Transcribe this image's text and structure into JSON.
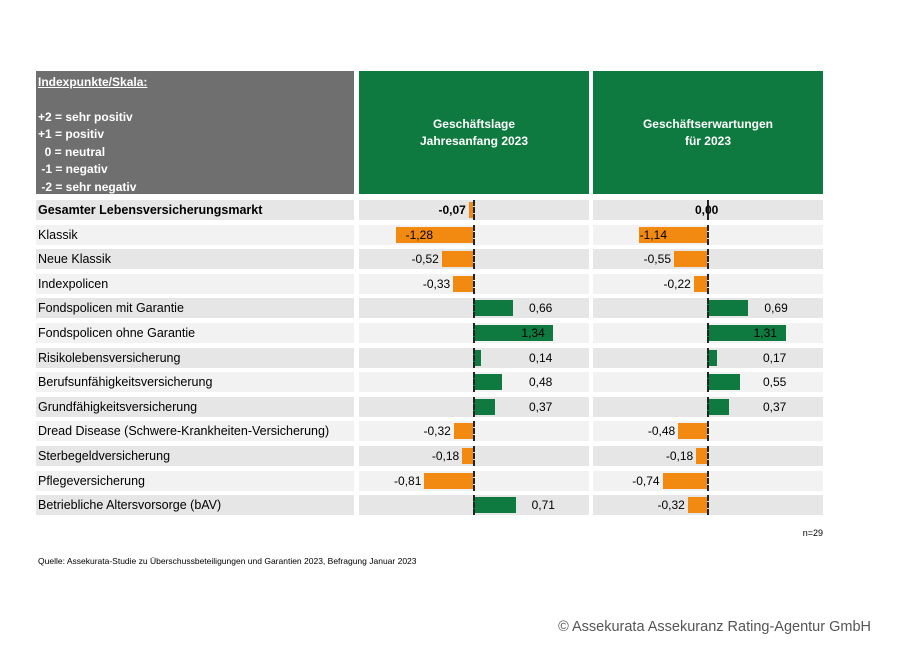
{
  "legend": {
    "title": "Indexpunkte/Skala:",
    "lines": [
      "+2 = sehr positiv",
      "+1 = positiv",
      "  0 = neutral",
      " -1 = negativ",
      " -2 = sehr negativ"
    ]
  },
  "chart_data": {
    "type": "bar",
    "orientation": "horizontal",
    "categories": [
      "Gesamter Lebensversicherungsmarkt",
      "Klassik",
      "Neue Klassik",
      "Indexpolicen",
      "Fondspolicen mit Garantie",
      "Fondspolicen ohne Garantie",
      "Risikolebensversicherung",
      "Berufsunfähigkeitsversicherung",
      "Grundfähigkeitsversicherung",
      "Dread Disease (Schwere-Krankheiten-Versicherung)",
      "Sterbegeldversicherung",
      "Pflegeversicherung",
      "Betriebliche Altersvorsorge (bAV)"
    ],
    "series": [
      {
        "name": "Geschäftslage\nJahresanfang 2023",
        "values": [
          -0.07,
          -1.28,
          -0.52,
          -0.33,
          0.66,
          1.34,
          0.14,
          0.48,
          0.37,
          -0.32,
          -0.18,
          -0.81,
          0.71
        ],
        "labels": [
          "-0,07",
          "-1,28",
          "-0,52",
          "-0,33",
          "0,66",
          "1,34",
          "0,14",
          "0,48",
          "0,37",
          "-0,32",
          "-0,18",
          "-0,81",
          "0,71"
        ]
      },
      {
        "name": "Geschäftserwartungen\nfür 2023",
        "values": [
          0.0,
          -1.14,
          -0.55,
          -0.22,
          0.69,
          1.31,
          0.17,
          0.55,
          0.37,
          -0.48,
          -0.18,
          -0.74,
          -0.32
        ],
        "labels": [
          "0,00",
          "-1,14",
          "-0,55",
          "-0,22",
          "0,69",
          "1,31",
          "0,17",
          "0,55",
          "0,37",
          "-0,48",
          "-0,18",
          "-0,74",
          "-0,32"
        ]
      }
    ],
    "colors": {
      "negative": "#f28a12",
      "positive": "#0e7a40"
    },
    "xlim": [
      -2,
      2
    ]
  },
  "n_label": "n=29",
  "source": "Quelle: Assekurata-Studie zu Überschussbeteiligungen und Garantien 2023, Befragung Januar 2023",
  "copyright": "© Assekurata Assekuranz Rating-Agentur GmbH"
}
